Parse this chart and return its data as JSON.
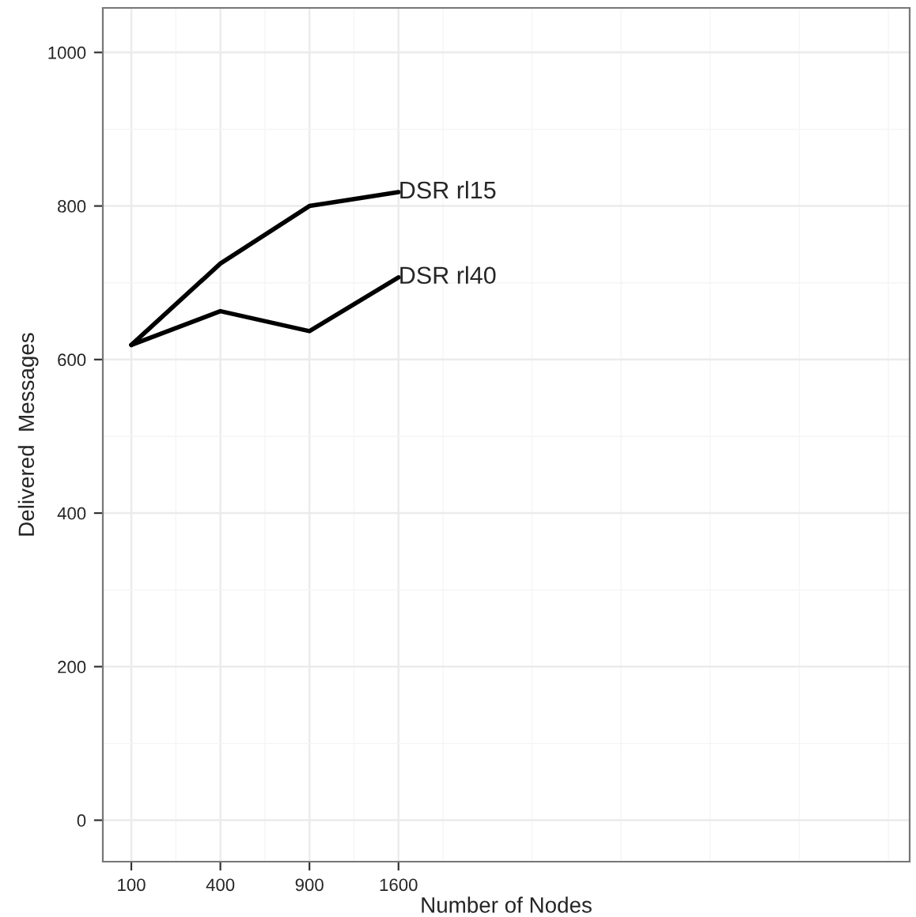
{
  "chart_data": {
    "type": "line",
    "xlabel": "Number of Nodes",
    "ylabel": "Delivered  Messages",
    "categories": [
      "100",
      "400",
      "900",
      "1600"
    ],
    "series": [
      {
        "name": "DSR rl15",
        "color": "#000000",
        "values": [
          619,
          725,
          800,
          818
        ]
      },
      {
        "name": "DSR rl40",
        "color": "#000000",
        "values": [
          619,
          663,
          637,
          707
        ]
      }
    ],
    "ylim": [
      -54,
      1058
    ],
    "yticks": [
      0,
      200,
      400,
      600,
      800,
      1000
    ],
    "grid": true,
    "legend": false,
    "marker": "none",
    "line_style": "solid"
  }
}
